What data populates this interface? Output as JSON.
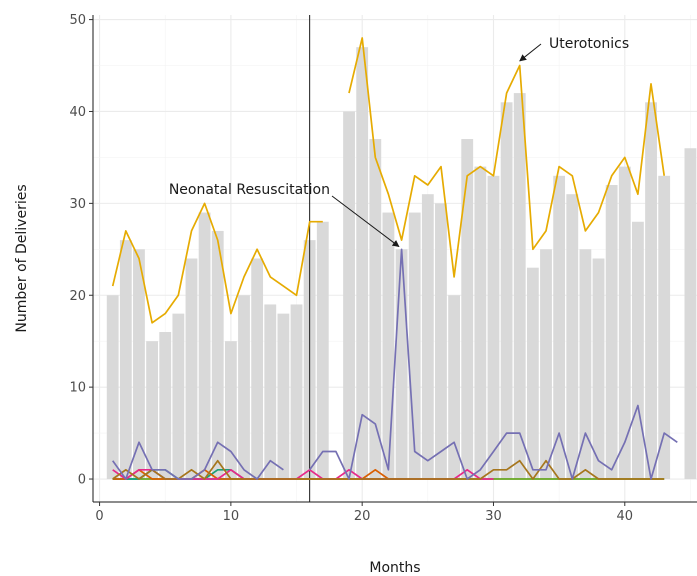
{
  "chart_data": {
    "type": "bar",
    "title": "",
    "xlabel": "Months",
    "ylabel": "Number of Deliveries",
    "xlim": [
      -0.5,
      45.5
    ],
    "ylim": [
      -2.5,
      50.5
    ],
    "x_ticks": [
      0,
      10,
      20,
      30,
      40
    ],
    "y_ticks": [
      0,
      10,
      20,
      30,
      40,
      50
    ],
    "grid": true,
    "vline_x": 16,
    "bars": {
      "x": [
        1,
        2,
        3,
        4,
        5,
        6,
        7,
        8,
        9,
        10,
        11,
        12,
        13,
        14,
        15,
        16,
        17,
        19,
        20,
        21,
        22,
        23,
        24,
        25,
        26,
        27,
        28,
        29,
        30,
        31,
        32,
        33,
        34,
        35,
        36,
        37,
        38,
        39,
        40,
        41,
        42,
        43,
        45
      ],
      "values": [
        20,
        26,
        25,
        15,
        16,
        18,
        24,
        29,
        27,
        15,
        20,
        24,
        19,
        18,
        19,
        26,
        28,
        40,
        47,
        37,
        29,
        25,
        29,
        31,
        30,
        20,
        37,
        34,
        33,
        41,
        42,
        23,
        25,
        33,
        31,
        25,
        24,
        32,
        34,
        28,
        41,
        33,
        36
      ],
      "color": "#d9d9d9"
    },
    "series": [
      {
        "color": "#e6ab02",
        "segments": [
          {
            "x": [
              1,
              2,
              3,
              4,
              5,
              6,
              7,
              8,
              9,
              10,
              11,
              12,
              13,
              14,
              15,
              16,
              17
            ],
            "y": [
              21,
              27,
              24,
              17,
              18,
              20,
              27,
              30,
              26,
              18,
              22,
              25,
              22,
              21,
              20,
              28,
              28
            ]
          },
          {
            "x": [
              19,
              20,
              21,
              22,
              23,
              24,
              25,
              26,
              27,
              28,
              29,
              30,
              31,
              32,
              33,
              34,
              35,
              36,
              37,
              38,
              39,
              40,
              41,
              42,
              43
            ],
            "y": [
              42,
              48,
              35,
              31,
              26,
              33,
              32,
              34,
              22,
              33,
              34,
              33,
              42,
              45,
              25,
              27,
              34,
              33,
              27,
              29,
              33,
              35,
              31,
              43,
              33
            ]
          }
        ]
      },
      {
        "color": "#7570b3",
        "segments": [
          {
            "x": [
              1,
              2,
              3,
              4,
              5,
              6,
              7,
              8,
              9,
              10,
              11,
              12,
              13,
              14
            ],
            "y": [
              2,
              0,
              4,
              1,
              1,
              0,
              0,
              1,
              4,
              3,
              1,
              0,
              2,
              1
            ]
          },
          {
            "x": [
              16,
              17,
              18,
              19,
              20,
              21,
              22,
              23,
              24,
              25,
              26,
              27,
              28,
              29,
              30,
              31,
              32,
              33,
              34,
              35,
              36,
              37,
              38,
              39,
              40,
              41,
              42,
              43,
              44
            ],
            "y": [
              1,
              3,
              3,
              0,
              7,
              6,
              1,
              25,
              3,
              2,
              3,
              4,
              0,
              1,
              3,
              5,
              5,
              1,
              1,
              5,
              0,
              5,
              2,
              1,
              4,
              8,
              0,
              5,
              4
            ]
          }
        ]
      },
      {
        "color": "#a6761d",
        "segments": [
          {
            "x": [
              1,
              2,
              3,
              4,
              5,
              6,
              7,
              8,
              9,
              10,
              11,
              12,
              13,
              14,
              15,
              16,
              17,
              18,
              19,
              20,
              21,
              22,
              23,
              24,
              25,
              26,
              27,
              28,
              29,
              30,
              31,
              32,
              33,
              34,
              35,
              36,
              37,
              38,
              39,
              40,
              41,
              42,
              43
            ],
            "y": [
              0,
              1,
              0,
              1,
              0,
              0,
              1,
              0,
              2,
              0,
              0,
              0,
              0,
              0,
              0,
              0,
              0,
              0,
              0,
              0,
              0,
              0,
              0,
              0,
              0,
              0,
              0,
              0,
              0,
              1,
              1,
              2,
              0,
              2,
              0,
              0,
              1,
              0,
              0,
              0,
              0,
              0,
              0
            ]
          }
        ]
      },
      {
        "color": "#e7298a",
        "segments": [
          {
            "x": [
              1,
              2,
              3,
              4,
              5,
              6,
              7,
              8,
              9,
              10,
              11,
              12,
              13,
              14,
              15,
              16,
              17,
              18,
              19,
              20,
              21,
              22,
              23,
              24,
              25,
              26,
              27,
              28,
              29,
              30
            ],
            "y": [
              1,
              0,
              1,
              1,
              0,
              0,
              0,
              0,
              0,
              1,
              0,
              0,
              0,
              0,
              0,
              1,
              0,
              0,
              1,
              0,
              0,
              0,
              0,
              0,
              0,
              0,
              0,
              1,
              0,
              0
            ]
          }
        ]
      },
      {
        "color": "#d95f02",
        "segments": [
          {
            "x": [
              1,
              2,
              3,
              4,
              5,
              6,
              7,
              8,
              9,
              10,
              11,
              12,
              13,
              14,
              15,
              16,
              17,
              18,
              19,
              20,
              21,
              22,
              23
            ],
            "y": [
              0,
              0,
              1,
              0,
              0,
              0,
              0,
              1,
              0,
              0,
              0,
              0,
              0,
              0,
              0,
              0,
              0,
              0,
              0,
              0,
              1,
              0,
              0
            ]
          }
        ]
      },
      {
        "color": "#1b9e77",
        "segments": [
          {
            "x": [
              1,
              2,
              3,
              4,
              5,
              6,
              7,
              8,
              9,
              10,
              11
            ],
            "y": [
              0,
              0,
              0,
              1,
              1,
              0,
              0,
              0,
              1,
              1,
              0
            ]
          }
        ]
      },
      {
        "color": "#66a61e",
        "segments": [
          {
            "x": [
              1,
              2,
              3,
              4,
              5,
              6,
              7,
              8,
              9,
              10,
              11,
              12,
              13,
              14,
              15,
              16,
              17,
              18,
              19,
              20,
              21,
              22,
              23,
              24,
              25,
              26,
              27,
              28,
              29,
              30,
              31,
              32,
              33,
              34,
              35,
              36,
              37,
              38,
              39,
              40,
              41,
              42,
              43
            ],
            "y": [
              0,
              0,
              0,
              0,
              0,
              0,
              0,
              0,
              0,
              0,
              0,
              0,
              0,
              0,
              0,
              0,
              0,
              0,
              0,
              0,
              0,
              0,
              0,
              0,
              0,
              0,
              0,
              0,
              0,
              0,
              0,
              0,
              0,
              0,
              0,
              0,
              0,
              0,
              0,
              0,
              0,
              0,
              0
            ]
          }
        ]
      },
      {
        "color": "#17becf",
        "segments": [
          {
            "x": [
              1,
              2,
              3,
              4,
              5,
              6,
              7,
              8,
              9,
              10,
              11
            ],
            "y": [
              0,
              0,
              0,
              1,
              0,
              0,
              0,
              0,
              0,
              0,
              0
            ]
          }
        ]
      }
    ],
    "annotations": [
      {
        "text": "Uterotonics",
        "arrow_to": [
          32,
          45.5
        ]
      },
      {
        "text": "Neonatal Resuscitation",
        "arrow_to": [
          22.8,
          25.3
        ]
      }
    ]
  }
}
